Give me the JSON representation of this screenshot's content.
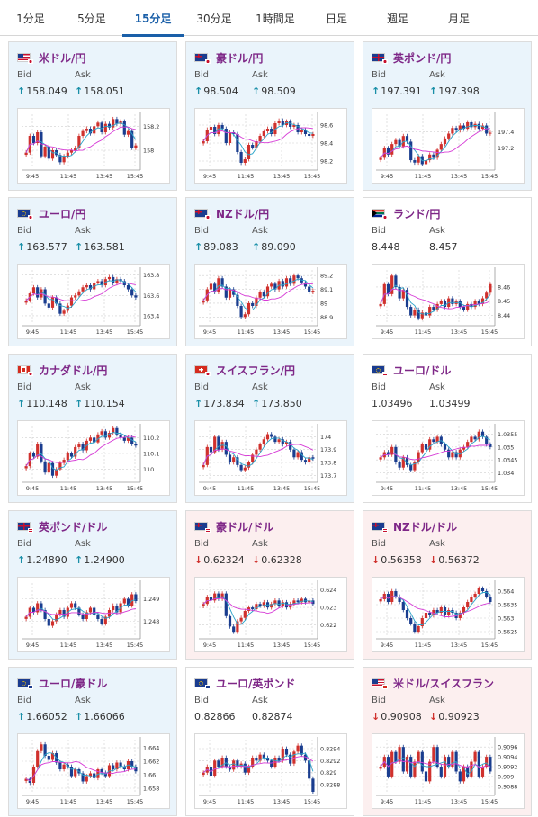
{
  "tabs": [
    {
      "label": "1分足",
      "active": false
    },
    {
      "label": "5分足",
      "active": false
    },
    {
      "label": "15分足",
      "active": true
    },
    {
      "label": "30分足",
      "active": false
    },
    {
      "label": "1時間足",
      "active": false
    },
    {
      "label": "日足",
      "active": false
    },
    {
      "label": "週足",
      "active": false
    },
    {
      "label": "月足",
      "active": false
    }
  ],
  "labels": {
    "bid": "Bid",
    "ask": "Ask"
  },
  "colors": {
    "up_bg": "#eaf4fb",
    "down_bg": "#fcefef",
    "bull_candle": "#d0312d",
    "bear_candle": "#1a3d8f",
    "ma_short": "#2aa3c9",
    "ma_long": "#d63ad6",
    "pair_name": "#7e2787"
  },
  "x_ticks": [
    "9:45",
    "11:45",
    "13:45",
    "15:45"
  ],
  "pairs": [
    {
      "name": "米ドル/円",
      "flag": "us-jp",
      "bid": "158.049",
      "ask": "158.051",
      "direction": "up",
      "state": "up",
      "chart_data": {
        "type": "candlestick",
        "y_ticks": [
          "158.2",
          "158"
        ],
        "ylim": [
          157.85,
          158.3
        ],
        "close": [
          157.98,
          158.12,
          158.06,
          158.15,
          157.95,
          158.03,
          157.93,
          158.0,
          157.96,
          157.9,
          157.95,
          157.98,
          158.0,
          158.02,
          158.12,
          158.16,
          158.18,
          158.14,
          158.2,
          158.23,
          158.15,
          158.22,
          158.19,
          158.26,
          158.22,
          158.24,
          158.13,
          158.16,
          158.02,
          158.04
        ]
      }
    },
    {
      "name": "豪ドル/円",
      "flag": "au-jp",
      "bid": "98.504",
      "ask": "98.509",
      "direction": "up",
      "state": "up",
      "chart_data": {
        "type": "candlestick",
        "y_ticks": [
          "98.6",
          "98.4",
          "98.2"
        ],
        "ylim": [
          98.12,
          98.72
        ],
        "close": [
          98.42,
          98.55,
          98.58,
          98.5,
          98.6,
          98.56,
          98.4,
          98.52,
          98.5,
          98.3,
          98.18,
          98.22,
          98.38,
          98.35,
          98.42,
          98.48,
          98.53,
          98.56,
          98.5,
          98.62,
          98.65,
          98.6,
          98.64,
          98.58,
          98.6,
          98.52,
          98.55,
          98.5,
          98.48,
          98.5
        ]
      }
    },
    {
      "name": "英ポンド/円",
      "flag": "uk-jp",
      "bid": "197.391",
      "ask": "197.398",
      "direction": "up",
      "state": "up",
      "chart_data": {
        "type": "candlestick",
        "y_ticks": [
          "197.4",
          "197.2"
        ],
        "ylim": [
          196.95,
          197.62
        ],
        "close": [
          197.08,
          197.2,
          197.12,
          197.25,
          197.3,
          197.22,
          197.35,
          197.28,
          197.05,
          197.02,
          197.1,
          197.0,
          197.05,
          197.12,
          197.08,
          197.18,
          197.25,
          197.32,
          197.38,
          197.45,
          197.42,
          197.48,
          197.44,
          197.52,
          197.46,
          197.5,
          197.44,
          197.48,
          197.38,
          197.39
        ]
      }
    },
    {
      "name": "ユーロ/円",
      "flag": "eu-jp",
      "bid": "163.577",
      "ask": "163.581",
      "direction": "up",
      "state": "up",
      "chart_data": {
        "type": "candlestick",
        "y_ticks": [
          "163.8",
          "163.6",
          "163.4"
        ],
        "ylim": [
          163.32,
          163.85
        ],
        "close": [
          163.55,
          163.62,
          163.68,
          163.58,
          163.66,
          163.52,
          163.48,
          163.58,
          163.52,
          163.42,
          163.45,
          163.5,
          163.58,
          163.6,
          163.64,
          163.68,
          163.7,
          163.66,
          163.72,
          163.74,
          163.7,
          163.76,
          163.78,
          163.72,
          163.76,
          163.74,
          163.7,
          163.66,
          163.6,
          163.58
        ]
      }
    },
    {
      "name": "NZドル/円",
      "flag": "nz-jp",
      "bid": "89.083",
      "ask": "89.090",
      "direction": "up",
      "state": "up",
      "chart_data": {
        "type": "candlestick",
        "y_ticks": [
          "89.2",
          "89.1",
          "89",
          "88.9"
        ],
        "ylim": [
          88.85,
          89.24
        ],
        "close": [
          89.02,
          89.1,
          89.14,
          89.08,
          89.18,
          89.12,
          89.04,
          89.1,
          89.06,
          88.98,
          88.9,
          88.92,
          89.0,
          88.98,
          89.04,
          89.08,
          89.05,
          89.12,
          89.14,
          89.1,
          89.16,
          89.12,
          89.18,
          89.14,
          89.2,
          89.18,
          89.15,
          89.12,
          89.08,
          89.09
        ]
      }
    },
    {
      "name": "ランド/円",
      "flag": "za-jp",
      "bid": "8.448",
      "ask": "8.457",
      "direction": "none",
      "state": "plain",
      "chart_data": {
        "type": "candlestick",
        "y_ticks": [
          "8.46",
          "8.45",
          "8.44"
        ],
        "ylim": [
          8.434,
          8.472
        ],
        "close": [
          8.448,
          8.462,
          8.455,
          8.468,
          8.46,
          8.452,
          8.458,
          8.446,
          8.44,
          8.444,
          8.438,
          8.442,
          8.44,
          8.446,
          8.444,
          8.448,
          8.45,
          8.446,
          8.452,
          8.448,
          8.45,
          8.446,
          8.444,
          8.448,
          8.446,
          8.45,
          8.448,
          8.452,
          8.456,
          8.462
        ]
      }
    },
    {
      "name": "カナダドル/円",
      "flag": "ca-jp",
      "bid": "110.148",
      "ask": "110.154",
      "direction": "up",
      "state": "up",
      "chart_data": {
        "type": "candlestick",
        "y_ticks": [
          "110.2",
          "110.1",
          "110"
        ],
        "ylim": [
          109.93,
          110.27
        ],
        "close": [
          110.02,
          110.1,
          110.08,
          110.16,
          110.05,
          109.98,
          110.04,
          109.96,
          110.0,
          110.04,
          110.06,
          110.1,
          110.08,
          110.14,
          110.16,
          110.12,
          110.18,
          110.2,
          110.17,
          110.22,
          110.24,
          110.2,
          110.23,
          110.26,
          110.22,
          110.2,
          110.18,
          110.2,
          110.16,
          110.15
        ]
      }
    },
    {
      "name": "スイスフラン/円",
      "flag": "ch-jp",
      "bid": "173.834",
      "ask": "173.850",
      "direction": "up",
      "state": "up",
      "chart_data": {
        "type": "candlestick",
        "y_ticks": [
          "174",
          "173.9",
          "173.8",
          "173.7"
        ],
        "ylim": [
          173.66,
          174.08
        ],
        "close": [
          173.78,
          173.92,
          173.88,
          174.0,
          173.9,
          173.96,
          173.86,
          173.8,
          173.84,
          173.78,
          173.74,
          173.76,
          173.8,
          173.86,
          173.9,
          173.94,
          173.98,
          174.02,
          174.0,
          173.96,
          173.98,
          173.94,
          173.96,
          173.9,
          173.84,
          173.88,
          173.82,
          173.8,
          173.84,
          173.83
        ]
      }
    },
    {
      "name": "ユーロ/ドル",
      "flag": "eu-us",
      "bid": "1.03496",
      "ask": "1.03499",
      "direction": "none",
      "state": "plain",
      "chart_data": {
        "type": "candlestick",
        "y_ticks": [
          "1.0355",
          "1.035",
          "1.0345",
          "1.034"
        ],
        "ylim": [
          1.0337,
          1.0358
        ],
        "close": [
          1.0346,
          1.0348,
          1.0347,
          1.035,
          1.0344,
          1.0342,
          1.0346,
          1.0343,
          1.0341,
          1.0344,
          1.0348,
          1.0351,
          1.0349,
          1.0353,
          1.0352,
          1.0354,
          1.0351,
          1.0349,
          1.0346,
          1.0348,
          1.0346,
          1.0349,
          1.035,
          1.0352,
          1.0354,
          1.0353,
          1.0356,
          1.0354,
          1.0351,
          1.035
        ]
      }
    },
    {
      "name": "英ポンド/ドル",
      "flag": "uk-us",
      "bid": "1.24890",
      "ask": "1.24900",
      "direction": "up",
      "state": "up",
      "chart_data": {
        "type": "candlestick",
        "y_ticks": [
          "1.249",
          "1.248"
        ],
        "ylim": [
          1.2473,
          1.2497
        ],
        "close": [
          1.2482,
          1.2486,
          1.2484,
          1.2488,
          1.2485,
          1.2481,
          1.2478,
          1.248,
          1.2483,
          1.2485,
          1.2482,
          1.2486,
          1.2488,
          1.2486,
          1.2483,
          1.2481,
          1.2484,
          1.2486,
          1.2483,
          1.2481,
          1.2479,
          1.2482,
          1.2485,
          1.2487,
          1.2484,
          1.2488,
          1.249,
          1.2487,
          1.2492,
          1.2489
        ]
      }
    },
    {
      "name": "豪ドル/ドル",
      "flag": "au-us",
      "bid": "0.62324",
      "ask": "0.62328",
      "direction": "down",
      "state": "down",
      "chart_data": {
        "type": "candlestick",
        "y_ticks": [
          "0.624",
          "0.623",
          "0.622"
        ],
        "ylim": [
          0.6213,
          0.6244
        ],
        "close": [
          0.6232,
          0.6236,
          0.6234,
          0.6238,
          0.6235,
          0.6238,
          0.6225,
          0.6219,
          0.6216,
          0.6222,
          0.6224,
          0.6228,
          0.623,
          0.6229,
          0.6232,
          0.6231,
          0.6233,
          0.623,
          0.6232,
          0.6234,
          0.6231,
          0.6233,
          0.623,
          0.6232,
          0.6234,
          0.6233,
          0.6235,
          0.6233,
          0.6234,
          0.6232
        ]
      }
    },
    {
      "name": "NZドル/ドル",
      "flag": "nz-us",
      "bid": "0.56358",
      "ask": "0.56372",
      "direction": "down",
      "state": "down",
      "chart_data": {
        "type": "candlestick",
        "y_ticks": [
          "0.564",
          "0.5635",
          "0.563",
          "0.5625"
        ],
        "ylim": [
          0.5623,
          0.5643
        ],
        "close": [
          0.5637,
          0.5639,
          0.5636,
          0.564,
          0.5638,
          0.5636,
          0.5633,
          0.563,
          0.5628,
          0.5625,
          0.5627,
          0.563,
          0.5632,
          0.5631,
          0.5633,
          0.5632,
          0.5634,
          0.5631,
          0.5633,
          0.5632,
          0.563,
          0.5632,
          0.5634,
          0.5636,
          0.5638,
          0.5639,
          0.5641,
          0.564,
          0.5638,
          0.5636
        ]
      }
    },
    {
      "name": "ユーロ/豪ドル",
      "flag": "eu-au",
      "bid": "1.66052",
      "ask": "1.66066",
      "direction": "up",
      "state": "up",
      "chart_data": {
        "type": "candlestick",
        "y_ticks": [
          "1.664",
          "1.662",
          "1.66",
          "1.658"
        ],
        "ylim": [
          1.6572,
          1.6652
        ],
        "close": [
          1.6594,
          1.6588,
          1.6612,
          1.6635,
          1.6645,
          1.6628,
          1.6622,
          1.6632,
          1.6618,
          1.6608,
          1.6615,
          1.6612,
          1.6598,
          1.6608,
          1.6602,
          1.659,
          1.6598,
          1.6602,
          1.6595,
          1.6608,
          1.6603,
          1.6598,
          1.6614,
          1.6608,
          1.6618,
          1.6612,
          1.6608,
          1.662,
          1.6612,
          1.6605
        ]
      }
    },
    {
      "name": "ユーロ/英ポンド",
      "flag": "eu-uk",
      "bid": "0.82866",
      "ask": "0.82874",
      "direction": "none",
      "state": "plain",
      "chart_data": {
        "type": "candlestick",
        "y_ticks": [
          "0.8294",
          "0.8292",
          "0.829",
          "0.8288"
        ],
        "ylim": [
          0.82865,
          0.82955
        ],
        "close": [
          0.829,
          0.8291,
          0.82895,
          0.8292,
          0.8291,
          0.82925,
          0.8291,
          0.82905,
          0.8292,
          0.8291,
          0.82915,
          0.829,
          0.8291,
          0.82925,
          0.8292,
          0.8293,
          0.82925,
          0.8292,
          0.8291,
          0.82925,
          0.8292,
          0.8294,
          0.8293,
          0.82915,
          0.82935,
          0.82945,
          0.8293,
          0.8292,
          0.8289,
          0.82868
        ]
      }
    },
    {
      "name": "米ドル/スイスフラン",
      "flag": "us-ch",
      "bid": "0.90908",
      "ask": "0.90923",
      "direction": "down",
      "state": "down",
      "chart_data": {
        "type": "candlestick",
        "y_ticks": [
          "0.9096",
          "0.9094",
          "0.9092",
          "0.909",
          "0.9088"
        ],
        "ylim": [
          0.90865,
          0.90975
        ],
        "close": [
          0.9092,
          0.9094,
          0.909,
          0.9095,
          0.9093,
          0.9096,
          0.9091,
          0.9094,
          0.909,
          0.9093,
          0.9095,
          0.9091,
          0.9089,
          0.9093,
          0.9096,
          0.9092,
          0.909,
          0.9094,
          0.9092,
          0.9095,
          0.9091,
          0.9089,
          0.9092,
          0.909,
          0.9093,
          0.9095,
          0.909,
          0.9092,
          0.9094,
          0.9091
        ]
      }
    }
  ]
}
